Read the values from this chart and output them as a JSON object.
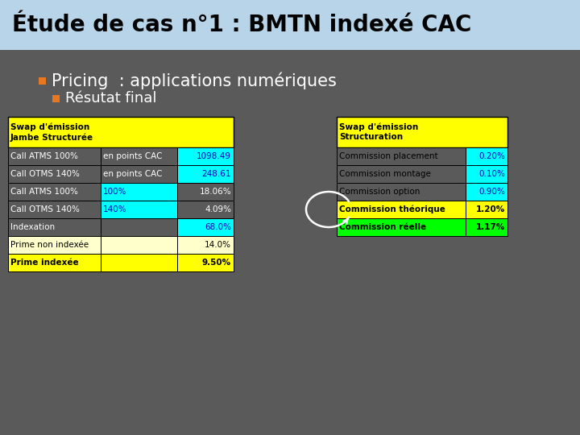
{
  "title": "Étude de cas n°1 : BMTN indexé CAC",
  "title_bg": "#b8d4e8",
  "slide_bg": "#5a5a5a",
  "bullet1": "Pricing  : applications numériques",
  "bullet2": "Résutat final",
  "bullet_color": "#e87722",
  "bullet_text_color": "#ffffff",
  "left_table": {
    "header_bg": "#ffff00",
    "header_text": "Swap d'émission\nJambe Structurée",
    "rows": [
      {
        "label": "Call ATMS 100%",
        "col2": "en points CAC",
        "col3": "1098.49",
        "bg": [
          "#5a5a5a",
          "#5a5a5a",
          "#00ffff"
        ],
        "text_color": [
          "#ffffff",
          "#ffffff",
          "#0000bb"
        ],
        "bold": false
      },
      {
        "label": "Call OTMS 140%",
        "col2": "en points CAC",
        "col3": "248.61",
        "bg": [
          "#5a5a5a",
          "#5a5a5a",
          "#00ffff"
        ],
        "text_color": [
          "#ffffff",
          "#ffffff",
          "#0000bb"
        ],
        "bold": false
      },
      {
        "label": "Call ATMS 100%",
        "col2": "100%",
        "col3": "18.06%",
        "bg": [
          "#5a5a5a",
          "#00ffff",
          "#5a5a5a"
        ],
        "text_color": [
          "#ffffff",
          "#0000bb",
          "#ffffff"
        ],
        "bold": false
      },
      {
        "label": "Call OTMS 140%",
        "col2": "140%",
        "col3": "4.09%",
        "bg": [
          "#5a5a5a",
          "#00ffff",
          "#5a5a5a"
        ],
        "text_color": [
          "#ffffff",
          "#0000bb",
          "#ffffff"
        ],
        "bold": false
      },
      {
        "label": "Indexation",
        "col2": "",
        "col3": "68.0%",
        "bg": [
          "#5a5a5a",
          "#5a5a5a",
          "#00ffff"
        ],
        "text_color": [
          "#ffffff",
          "#ffffff",
          "#0000bb"
        ],
        "bold": false
      },
      {
        "label": "Prime non indexée",
        "col2": "",
        "col3": "14.0%",
        "bg": [
          "#ffffcc",
          "#ffffcc",
          "#ffffcc"
        ],
        "text_color": [
          "#000000",
          "#000000",
          "#000000"
        ],
        "bold": false
      },
      {
        "label": "Prime indexée",
        "col2": "",
        "col3": "9.50%",
        "bg": [
          "#ffff00",
          "#ffff00",
          "#ffff00"
        ],
        "text_color": [
          "#000000",
          "#000000",
          "#000000"
        ],
        "bold": true
      }
    ]
  },
  "right_table": {
    "header": "Swap d'émission\nStructuration",
    "header_bg": "#ffff00",
    "rows": [
      {
        "label": "Commission placement",
        "val": "0.20%",
        "bg": [
          "#5a5a5a",
          "#00ffff"
        ],
        "text_color": [
          "#000000",
          "#0000bb"
        ],
        "bold": false
      },
      {
        "label": "Commission montage",
        "val": "0.10%",
        "bg": [
          "#5a5a5a",
          "#00ffff"
        ],
        "text_color": [
          "#000000",
          "#0000bb"
        ],
        "bold": false
      },
      {
        "label": "Commission option",
        "val": "0.90%",
        "bg": [
          "#5a5a5a",
          "#00ffff"
        ],
        "text_color": [
          "#000000",
          "#0000bb"
        ],
        "bold": false
      },
      {
        "label": "Commission théorique",
        "val": "1.20%",
        "bg": [
          "#ffff00",
          "#ffff00"
        ],
        "text_color": [
          "#000000",
          "#000000"
        ],
        "bold": true
      },
      {
        "label": "Commission réelle",
        "val": "1.17%",
        "bg": [
          "#00ff00",
          "#00ff00"
        ],
        "text_color": [
          "#000000",
          "#000000"
        ],
        "bold": true
      }
    ]
  }
}
